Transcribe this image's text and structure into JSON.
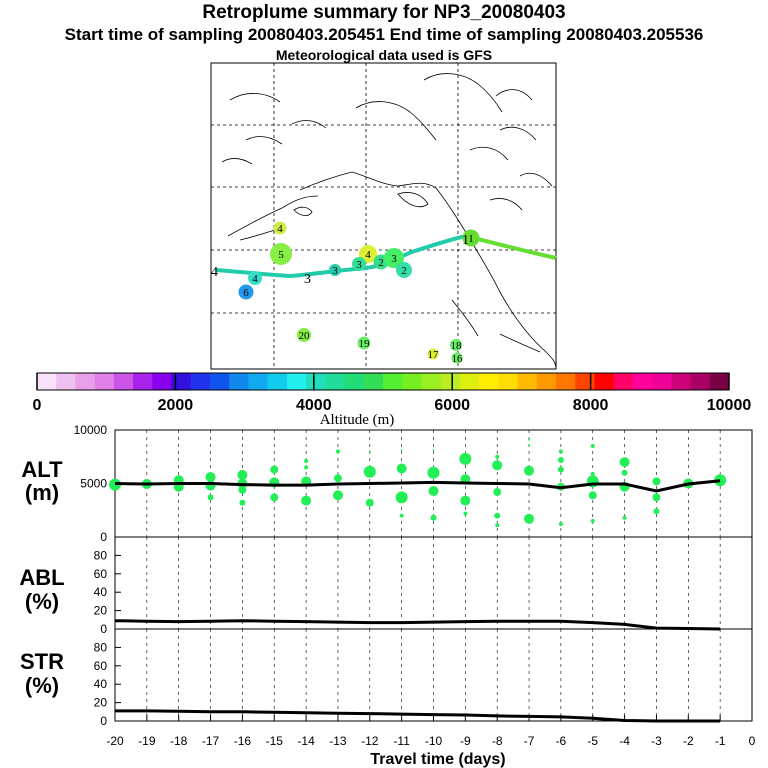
{
  "header": {
    "title": "Retroplume summary for NP3_20080403",
    "subtitle": "Start time of sampling 20080403.205451     End time of sampling 20080403.205536",
    "met": "Meteorological data used is GFS"
  },
  "colors": {
    "plume_track": "#22ccaa",
    "plume_track_east": "#66dd33",
    "alt_points": "#22ee55",
    "median_line": "#000000",
    "coast": "#000000"
  },
  "chart_data": [
    {
      "type": "map",
      "title": "Retroplume positions",
      "labels": [
        {
          "text": "4",
          "size": 9,
          "color": "#ccee44"
        },
        {
          "text": "5",
          "size": 18,
          "color": "#88ee44"
        },
        {
          "text": "4",
          "size": 10,
          "color": "#33ddcc"
        },
        {
          "text": "6",
          "size": 11,
          "color": "#2299ee"
        },
        {
          "text": "3",
          "size": 8,
          "color": "#22ccaa"
        },
        {
          "text": "4",
          "size": 14,
          "color": "#ddee33"
        },
        {
          "text": "3",
          "size": 10,
          "color": "#33dd99"
        },
        {
          "text": "2",
          "size": 11,
          "color": "#33dd88"
        },
        {
          "text": "3",
          "size": 16,
          "color": "#44ee66"
        },
        {
          "text": "2",
          "size": 12,
          "color": "#33ddaa"
        },
        {
          "text": "1",
          "size": 13,
          "color": "#66dd33"
        },
        {
          "text": "20",
          "size": 10,
          "color": "#88ee44"
        },
        {
          "text": "19",
          "size": 9,
          "color": "#66ee66"
        },
        {
          "text": "18",
          "size": 8,
          "color": "#66ee66"
        },
        {
          "text": "17",
          "size": 7,
          "color": "#ddee33"
        },
        {
          "text": "16",
          "size": 7,
          "color": "#66ee66"
        }
      ],
      "track_labels": [
        "4",
        "3",
        "1"
      ]
    },
    {
      "type": "colorbar",
      "xlabel": "Altitude (m)",
      "range": [
        0,
        10000
      ],
      "ticks": [
        0,
        2000,
        4000,
        6000,
        8000,
        10000
      ],
      "colors": [
        "#f8e0f8",
        "#f0c0f0",
        "#e8a0e8",
        "#e080e8",
        "#cc55e8",
        "#aa22ee",
        "#8800ee",
        "#3311dd",
        "#2233ee",
        "#1155ee",
        "#1188ee",
        "#11aaee",
        "#11ccee",
        "#22eeee",
        "#22ddbb",
        "#22dd99",
        "#22dd77",
        "#33dd55",
        "#55ee33",
        "#77ee22",
        "#99ee22",
        "#bbee22",
        "#ddee11",
        "#ffee00",
        "#ffdd00",
        "#ffbb00",
        "#ff9900",
        "#ff7700",
        "#ff4400",
        "#ff0000",
        "#ff0066",
        "#ff0099",
        "#ee0099",
        "#cc0077",
        "#aa0066",
        "#770044"
      ]
    },
    {
      "type": "scatter",
      "name": "ALT",
      "ylabel_line1": "ALT",
      "ylabel_line2": "(m)",
      "ylim": [
        0,
        10000
      ],
      "ytick_labels": [
        "10000",
        "5000",
        "0"
      ],
      "yticks": [
        10000,
        5000,
        0
      ],
      "median": [
        {
          "x": -20,
          "y": 5000
        },
        {
          "x": -19,
          "y": 4950
        },
        {
          "x": -18,
          "y": 5000
        },
        {
          "x": -17,
          "y": 5000
        },
        {
          "x": -16,
          "y": 4900
        },
        {
          "x": -15,
          "y": 4850
        },
        {
          "x": -14,
          "y": 4850
        },
        {
          "x": -13,
          "y": 4950
        },
        {
          "x": -12,
          "y": 5000
        },
        {
          "x": -11,
          "y": 5050
        },
        {
          "x": -10,
          "y": 5100
        },
        {
          "x": -9,
          "y": 5050
        },
        {
          "x": -8,
          "y": 5000
        },
        {
          "x": -7,
          "y": 4950
        },
        {
          "x": -6,
          "y": 4600
        },
        {
          "x": -5,
          "y": 4950
        },
        {
          "x": -4,
          "y": 4950
        },
        {
          "x": -3,
          "y": 4300
        },
        {
          "x": -2,
          "y": 4950
        },
        {
          "x": -1,
          "y": 5250
        }
      ],
      "points": [
        {
          "x": -20,
          "y": 4900,
          "size": 6
        },
        {
          "x": -19,
          "y": 4950,
          "size": 5
        },
        {
          "x": -18,
          "y": 5300,
          "size": 5
        },
        {
          "x": -18,
          "y": 4700,
          "size": 5
        },
        {
          "x": -17,
          "y": 5600,
          "size": 5
        },
        {
          "x": -17,
          "y": 4800,
          "size": 5
        },
        {
          "x": -17,
          "y": 3700,
          "size": 3
        },
        {
          "x": -16,
          "y": 5800,
          "size": 5
        },
        {
          "x": -16,
          "y": 5000,
          "size": 5
        },
        {
          "x": -16,
          "y": 4400,
          "size": 4
        },
        {
          "x": -16,
          "y": 3200,
          "size": 3
        },
        {
          "x": -15,
          "y": 6300,
          "size": 4
        },
        {
          "x": -15,
          "y": 5100,
          "size": 5
        },
        {
          "x": -15,
          "y": 3700,
          "size": 4
        },
        {
          "x": -14,
          "y": 7100,
          "size": 2
        },
        {
          "x": -14,
          "y": 6500,
          "size": 2
        },
        {
          "x": -14,
          "y": 5200,
          "size": 5
        },
        {
          "x": -14,
          "y": 3400,
          "size": 5
        },
        {
          "x": -13,
          "y": 8000,
          "size": 2
        },
        {
          "x": -13,
          "y": 5500,
          "size": 4
        },
        {
          "x": -13,
          "y": 3900,
          "size": 5
        },
        {
          "x": -12,
          "y": 8000,
          "size": 1
        },
        {
          "x": -12,
          "y": 6100,
          "size": 6
        },
        {
          "x": -12,
          "y": 3200,
          "size": 4
        },
        {
          "x": -11,
          "y": 8100,
          "size": 1
        },
        {
          "x": -11,
          "y": 6400,
          "size": 5
        },
        {
          "x": -11,
          "y": 3700,
          "size": 6
        },
        {
          "x": -11,
          "y": 2000,
          "size": 2
        },
        {
          "x": -10,
          "y": 8100,
          "size": 1
        },
        {
          "x": -10,
          "y": 6000,
          "size": 6
        },
        {
          "x": -10,
          "y": 4300,
          "size": 5
        },
        {
          "x": -10,
          "y": 1800,
          "size": 3
        },
        {
          "x": -9,
          "y": 7300,
          "size": 6
        },
        {
          "x": -9,
          "y": 5400,
          "size": 5
        },
        {
          "x": -9,
          "y": 3400,
          "size": 5
        },
        {
          "x": -9,
          "y": 2200,
          "size": 2
        },
        {
          "x": -8,
          "y": 7500,
          "size": 2
        },
        {
          "x": -8,
          "y": 6700,
          "size": 5
        },
        {
          "x": -8,
          "y": 4200,
          "size": 4
        },
        {
          "x": -8,
          "y": 2000,
          "size": 3
        },
        {
          "x": -8,
          "y": 1100,
          "size": 2
        },
        {
          "x": -7,
          "y": 9100,
          "size": 1
        },
        {
          "x": -7,
          "y": 8600,
          "size": 1
        },
        {
          "x": -7,
          "y": 6200,
          "size": 5
        },
        {
          "x": -7,
          "y": 1700,
          "size": 5
        },
        {
          "x": -6,
          "y": 8000,
          "size": 2
        },
        {
          "x": -6,
          "y": 7200,
          "size": 3
        },
        {
          "x": -6,
          "y": 6300,
          "size": 3
        },
        {
          "x": -6,
          "y": 4700,
          "size": 4
        },
        {
          "x": -6,
          "y": 1200,
          "size": 2
        },
        {
          "x": -5,
          "y": 8500,
          "size": 2
        },
        {
          "x": -5,
          "y": 5900,
          "size": 2
        },
        {
          "x": -5,
          "y": 5200,
          "size": 6
        },
        {
          "x": -5,
          "y": 3900,
          "size": 4
        },
        {
          "x": -5,
          "y": 1500,
          "size": 2
        },
        {
          "x": -4,
          "y": 7000,
          "size": 5
        },
        {
          "x": -4,
          "y": 6000,
          "size": 3
        },
        {
          "x": -4,
          "y": 4700,
          "size": 5
        },
        {
          "x": -4,
          "y": 1800,
          "size": 2
        },
        {
          "x": -3,
          "y": 5200,
          "size": 4
        },
        {
          "x": -3,
          "y": 3700,
          "size": 4
        },
        {
          "x": -3,
          "y": 2400,
          "size": 3
        },
        {
          "x": -2,
          "y": 5000,
          "size": 5
        },
        {
          "x": -1,
          "y": 5300,
          "size": 6
        }
      ]
    },
    {
      "type": "line",
      "name": "ABL",
      "ylabel_line1": "ABL",
      "ylabel_line2": "(%)",
      "ylim": [
        0,
        100
      ],
      "ytick_labels": [
        "80",
        "60",
        "40",
        "20",
        "0"
      ],
      "yticks": [
        80,
        60,
        40,
        20,
        0
      ],
      "x": [
        -20,
        -19,
        -18,
        -17,
        -16,
        -15,
        -14,
        -13,
        -12,
        -11,
        -10,
        -9,
        -8,
        -7,
        -6,
        -5,
        -4,
        -3,
        -2,
        -1
      ],
      "values": [
        9,
        8.5,
        8,
        8.5,
        9,
        8.5,
        8,
        7.5,
        7,
        7,
        7.5,
        8,
        8.5,
        8.5,
        8.5,
        7,
        5,
        1,
        0.5,
        0
      ]
    },
    {
      "type": "line",
      "name": "STR",
      "ylabel_line1": "STR",
      "ylabel_line2": "(%)",
      "ylim": [
        0,
        100
      ],
      "ytick_labels": [
        "80",
        "60",
        "40",
        "20",
        "0"
      ],
      "yticks": [
        80,
        60,
        40,
        20,
        0
      ],
      "xlabel": "Travel time (days)",
      "xtick_labels": [
        "-20",
        "-19",
        "-18",
        "-17",
        "-16",
        "-15",
        "-14",
        "-13",
        "-12",
        "-11",
        "-10",
        "-9",
        "-8",
        "-7",
        "-6",
        "-5",
        "-4",
        "-3",
        "-2",
        "-1",
        "0"
      ],
      "x": [
        -20,
        -19,
        -18,
        -17,
        -16,
        -15,
        -14,
        -13,
        -12,
        -11,
        -10,
        -9,
        -8,
        -7,
        -6,
        -5,
        -4,
        -3,
        -2,
        -1
      ],
      "values": [
        11,
        11,
        10.5,
        10,
        10,
        9.5,
        9,
        8.5,
        8,
        7.5,
        7,
        6.5,
        5.5,
        5,
        4.5,
        3,
        0.5,
        0,
        0,
        0
      ]
    }
  ]
}
